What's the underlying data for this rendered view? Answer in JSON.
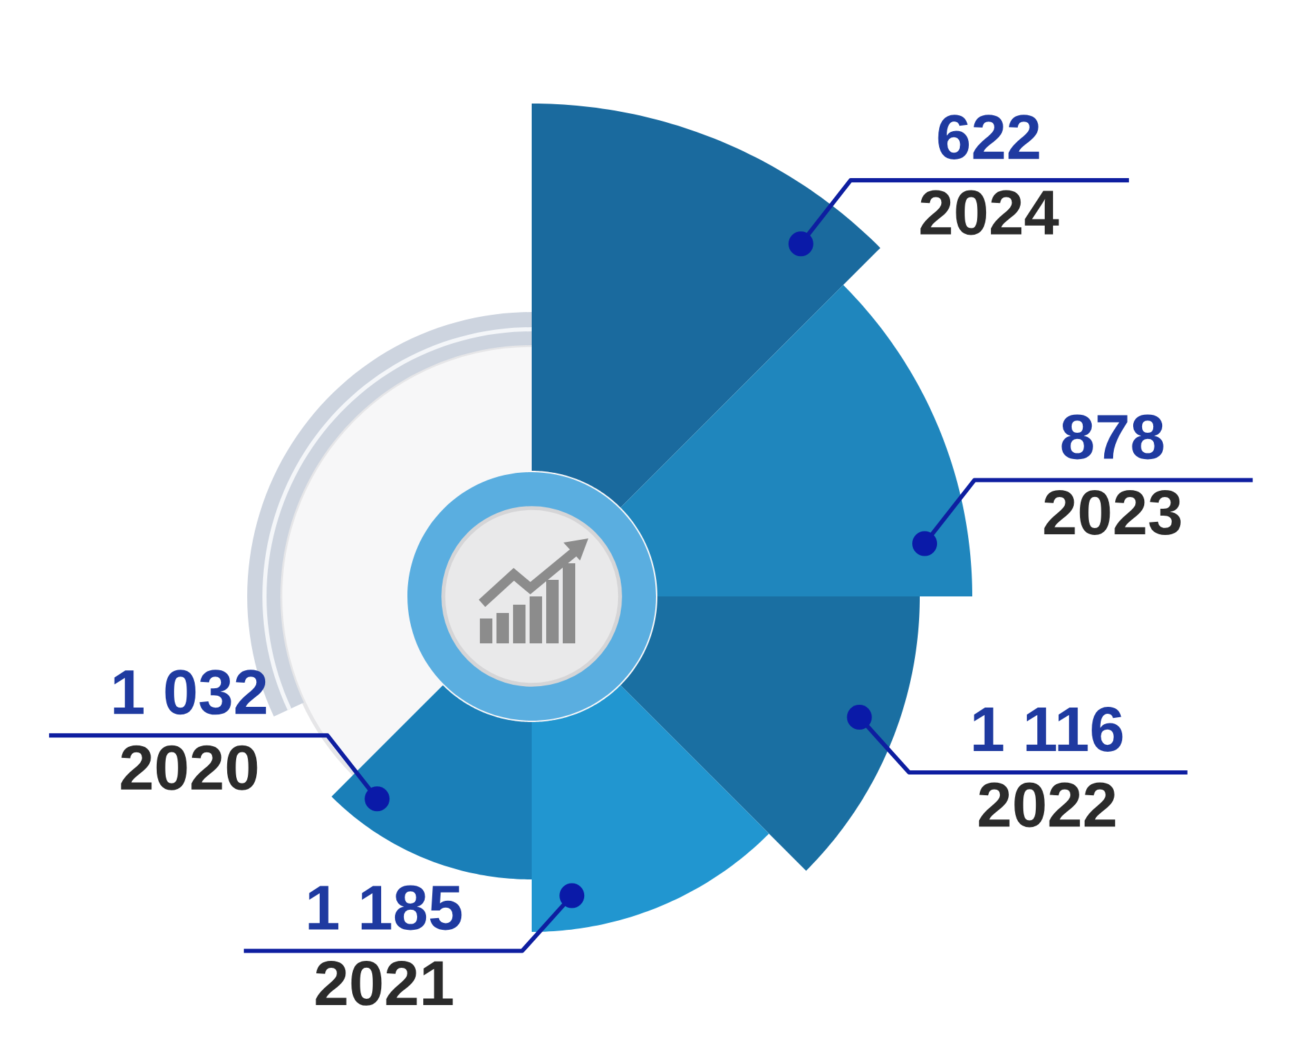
{
  "chart_data": {
    "type": "other",
    "categories": [
      "2020",
      "2021",
      "2022",
      "2023",
      "2024"
    ],
    "values": [
      1032,
      1185,
      1116,
      878,
      622
    ],
    "value_labels": [
      "1 032",
      "1 185",
      "1 116",
      "878",
      "622"
    ],
    "colors": [
      "#1a7fb8",
      "#2196d0",
      "#1a6fa2",
      "#1f86bd",
      "#1a6a9e"
    ]
  }
}
